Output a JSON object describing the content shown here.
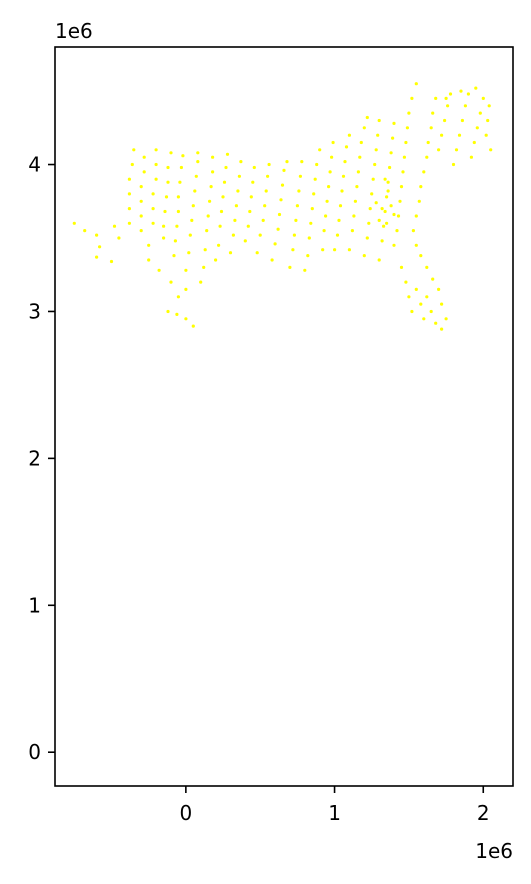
{
  "chart_data": {
    "type": "scatter",
    "title": "",
    "xlabel": "",
    "ylabel": "",
    "x_offset_label": "1e6",
    "y_offset_label": "1e6",
    "xlim": [
      -0.88,
      2.2
    ],
    "ylim": [
      -0.23,
      4.8
    ],
    "x_ticks": [
      0,
      1,
      2
    ],
    "x_tick_labels": [
      "0",
      "1",
      "2"
    ],
    "y_ticks": [
      0,
      1,
      2,
      3,
      4
    ],
    "y_tick_labels": [
      "0",
      "1",
      "2",
      "3",
      "4"
    ],
    "grid": false,
    "legend": "none",
    "marker_color": "#ffff00",
    "series": [
      {
        "values": [
          [
            -0.75,
            3.6
          ],
          [
            -0.68,
            3.55
          ],
          [
            -0.6,
            3.52
          ],
          [
            -0.58,
            3.44
          ],
          [
            -0.6,
            3.37
          ],
          [
            -0.5,
            3.34
          ],
          [
            -0.48,
            3.58
          ],
          [
            -0.45,
            3.5
          ],
          [
            -0.38,
            3.6
          ],
          [
            -0.38,
            3.7
          ],
          [
            -0.38,
            3.8
          ],
          [
            -0.38,
            3.9
          ],
          [
            -0.36,
            4.0
          ],
          [
            -0.35,
            4.1
          ],
          [
            -0.3,
            3.55
          ],
          [
            -0.3,
            3.65
          ],
          [
            -0.3,
            3.75
          ],
          [
            -0.3,
            3.85
          ],
          [
            -0.28,
            3.95
          ],
          [
            -0.28,
            4.05
          ],
          [
            -0.25,
            3.45
          ],
          [
            -0.25,
            3.35
          ],
          [
            -0.22,
            3.6
          ],
          [
            -0.22,
            3.7
          ],
          [
            -0.22,
            3.8
          ],
          [
            -0.2,
            3.9
          ],
          [
            -0.2,
            4.0
          ],
          [
            -0.2,
            4.1
          ],
          [
            -0.18,
            3.28
          ],
          [
            -0.15,
            3.5
          ],
          [
            -0.15,
            3.58
          ],
          [
            -0.14,
            3.68
          ],
          [
            -0.13,
            3.78
          ],
          [
            -0.12,
            3.88
          ],
          [
            -0.12,
            3.98
          ],
          [
            -0.1,
            4.08
          ],
          [
            -0.1,
            3.2
          ],
          [
            -0.08,
            3.38
          ],
          [
            -0.07,
            3.48
          ],
          [
            -0.06,
            3.58
          ],
          [
            -0.05,
            3.68
          ],
          [
            -0.05,
            3.78
          ],
          [
            -0.04,
            3.88
          ],
          [
            -0.03,
            3.98
          ],
          [
            -0.02,
            4.06
          ],
          [
            -0.12,
            3.0
          ],
          [
            -0.06,
            2.98
          ],
          [
            0.0,
            2.95
          ],
          [
            0.05,
            2.9
          ],
          [
            -0.05,
            3.1
          ],
          [
            0.0,
            3.15
          ],
          [
            0.0,
            3.28
          ],
          [
            0.02,
            3.4
          ],
          [
            0.03,
            3.52
          ],
          [
            0.04,
            3.62
          ],
          [
            0.05,
            3.72
          ],
          [
            0.06,
            3.82
          ],
          [
            0.07,
            3.92
          ],
          [
            0.08,
            4.02
          ],
          [
            0.08,
            4.08
          ],
          [
            0.1,
            3.2
          ],
          [
            0.12,
            3.3
          ],
          [
            0.13,
            3.42
          ],
          [
            0.14,
            3.55
          ],
          [
            0.15,
            3.65
          ],
          [
            0.16,
            3.75
          ],
          [
            0.17,
            3.85
          ],
          [
            0.18,
            3.95
          ],
          [
            0.18,
            4.05
          ],
          [
            0.2,
            3.35
          ],
          [
            0.22,
            3.45
          ],
          [
            0.23,
            3.58
          ],
          [
            0.24,
            3.68
          ],
          [
            0.25,
            3.78
          ],
          [
            0.26,
            3.88
          ],
          [
            0.27,
            3.98
          ],
          [
            0.28,
            4.07
          ],
          [
            0.3,
            3.4
          ],
          [
            0.32,
            3.52
          ],
          [
            0.33,
            3.62
          ],
          [
            0.34,
            3.72
          ],
          [
            0.35,
            3.82
          ],
          [
            0.36,
            3.92
          ],
          [
            0.37,
            4.02
          ],
          [
            0.4,
            3.48
          ],
          [
            0.42,
            3.58
          ],
          [
            0.43,
            3.68
          ],
          [
            0.44,
            3.78
          ],
          [
            0.45,
            3.88
          ],
          [
            0.46,
            3.98
          ],
          [
            0.48,
            3.4
          ],
          [
            0.5,
            3.52
          ],
          [
            0.52,
            3.62
          ],
          [
            0.53,
            3.72
          ],
          [
            0.54,
            3.82
          ],
          [
            0.55,
            3.92
          ],
          [
            0.56,
            4.0
          ],
          [
            0.58,
            3.35
          ],
          [
            0.6,
            3.46
          ],
          [
            0.62,
            3.56
          ],
          [
            0.63,
            3.66
          ],
          [
            0.64,
            3.76
          ],
          [
            0.65,
            3.86
          ],
          [
            0.66,
            3.96
          ],
          [
            0.68,
            4.02
          ],
          [
            0.7,
            3.3
          ],
          [
            0.72,
            3.42
          ],
          [
            0.73,
            3.52
          ],
          [
            0.74,
            3.62
          ],
          [
            0.75,
            3.72
          ],
          [
            0.76,
            3.82
          ],
          [
            0.77,
            3.92
          ],
          [
            0.78,
            4.02
          ],
          [
            0.8,
            3.28
          ],
          [
            0.82,
            3.38
          ],
          [
            0.83,
            3.5
          ],
          [
            0.84,
            3.6
          ],
          [
            0.85,
            3.7
          ],
          [
            0.86,
            3.8
          ],
          [
            0.87,
            3.9
          ],
          [
            0.88,
            4.0
          ],
          [
            0.9,
            4.1
          ],
          [
            0.92,
            3.42
          ],
          [
            0.93,
            3.55
          ],
          [
            0.94,
            3.65
          ],
          [
            0.95,
            3.75
          ],
          [
            0.96,
            3.85
          ],
          [
            0.97,
            3.95
          ],
          [
            0.98,
            4.05
          ],
          [
            0.99,
            4.15
          ],
          [
            1.0,
            3.42
          ],
          [
            1.02,
            3.52
          ],
          [
            1.03,
            3.62
          ],
          [
            1.04,
            3.72
          ],
          [
            1.05,
            3.82
          ],
          [
            1.06,
            3.92
          ],
          [
            1.07,
            4.02
          ],
          [
            1.08,
            4.12
          ],
          [
            1.1,
            4.2
          ],
          [
            1.1,
            3.42
          ],
          [
            1.12,
            3.55
          ],
          [
            1.13,
            3.65
          ],
          [
            1.14,
            3.75
          ],
          [
            1.15,
            3.85
          ],
          [
            1.16,
            3.95
          ],
          [
            1.17,
            4.05
          ],
          [
            1.18,
            4.15
          ],
          [
            1.2,
            4.25
          ],
          [
            1.22,
            4.32
          ],
          [
            1.2,
            3.38
          ],
          [
            1.22,
            3.5
          ],
          [
            1.23,
            3.6
          ],
          [
            1.24,
            3.7
          ],
          [
            1.25,
            3.8
          ],
          [
            1.26,
            3.9
          ],
          [
            1.27,
            4.0
          ],
          [
            1.28,
            4.1
          ],
          [
            1.29,
            4.2
          ],
          [
            1.3,
            4.3
          ],
          [
            1.3,
            3.35
          ],
          [
            1.32,
            3.48
          ],
          [
            1.33,
            3.58
          ],
          [
            1.34,
            3.68
          ],
          [
            1.35,
            3.78
          ],
          [
            1.36,
            3.88
          ],
          [
            1.37,
            3.98
          ],
          [
            1.38,
            4.08
          ],
          [
            1.39,
            4.18
          ],
          [
            1.4,
            4.28
          ],
          [
            1.4,
            3.45
          ],
          [
            1.42,
            3.55
          ],
          [
            1.43,
            3.65
          ],
          [
            1.44,
            3.75
          ],
          [
            1.45,
            3.85
          ],
          [
            1.46,
            3.95
          ],
          [
            1.47,
            4.05
          ],
          [
            1.48,
            4.15
          ],
          [
            1.49,
            4.25
          ],
          [
            1.5,
            4.35
          ],
          [
            1.52,
            4.45
          ],
          [
            1.55,
            4.55
          ],
          [
            1.45,
            3.3
          ],
          [
            1.48,
            3.2
          ],
          [
            1.5,
            3.1
          ],
          [
            1.52,
            3.0
          ],
          [
            1.55,
            3.15
          ],
          [
            1.58,
            3.05
          ],
          [
            1.6,
            2.95
          ],
          [
            1.62,
            3.1
          ],
          [
            1.65,
            3.0
          ],
          [
            1.68,
            2.92
          ],
          [
            1.72,
            2.88
          ],
          [
            1.75,
            2.95
          ],
          [
            1.72,
            3.05
          ],
          [
            1.7,
            3.15
          ],
          [
            1.66,
            3.22
          ],
          [
            1.62,
            3.3
          ],
          [
            1.58,
            3.38
          ],
          [
            1.55,
            3.45
          ],
          [
            1.53,
            3.55
          ],
          [
            1.55,
            3.65
          ],
          [
            1.57,
            3.75
          ],
          [
            1.58,
            3.85
          ],
          [
            1.6,
            3.95
          ],
          [
            1.62,
            4.05
          ],
          [
            1.63,
            4.15
          ],
          [
            1.65,
            4.25
          ],
          [
            1.66,
            4.35
          ],
          [
            1.68,
            4.45
          ],
          [
            1.7,
            4.1
          ],
          [
            1.72,
            4.2
          ],
          [
            1.74,
            4.3
          ],
          [
            1.76,
            4.4
          ],
          [
            1.78,
            4.48
          ],
          [
            1.8,
            4.0
          ],
          [
            1.82,
            4.1
          ],
          [
            1.84,
            4.2
          ],
          [
            1.86,
            4.3
          ],
          [
            1.88,
            4.4
          ],
          [
            1.9,
            4.48
          ],
          [
            1.92,
            4.05
          ],
          [
            1.94,
            4.15
          ],
          [
            1.96,
            4.25
          ],
          [
            1.98,
            4.35
          ],
          [
            2.0,
            4.45
          ],
          [
            2.02,
            4.2
          ],
          [
            2.03,
            4.3
          ],
          [
            2.04,
            4.4
          ],
          [
            2.05,
            4.1
          ],
          [
            1.95,
            4.52
          ],
          [
            1.85,
            4.5
          ],
          [
            1.75,
            4.45
          ],
          [
            1.35,
            3.6
          ],
          [
            1.32,
            3.7
          ],
          [
            1.38,
            3.72
          ],
          [
            1.36,
            3.82
          ],
          [
            1.4,
            3.66
          ],
          [
            1.34,
            3.9
          ],
          [
            1.3,
            3.62
          ],
          [
            1.28,
            3.74
          ]
        ]
      }
    ]
  }
}
